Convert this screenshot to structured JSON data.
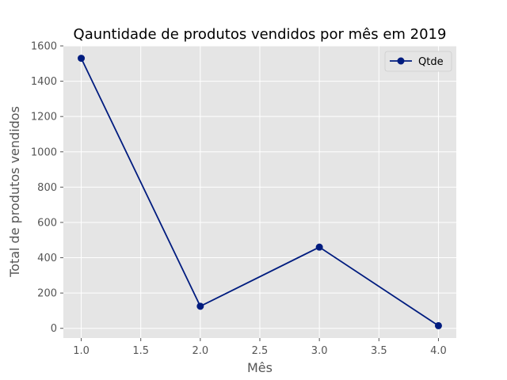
{
  "chart_data": {
    "type": "line",
    "title": "Qauntidade de produtos vendidos por mês em 2019",
    "xlabel": "Mês",
    "ylabel": "Total de produtos vendidos",
    "xlim": [
      0.85,
      4.15
    ],
    "ylim": [
      -55,
      1600
    ],
    "xticks": [
      "1.0",
      "1.5",
      "2.0",
      "2.5",
      "3.0",
      "3.5",
      "4.0"
    ],
    "yticks": [
      "0",
      "200",
      "400",
      "600",
      "800",
      "1000",
      "1200",
      "1400",
      "1600"
    ],
    "grid": true,
    "legend_position": "top-right",
    "series": [
      {
        "name": "Qtde",
        "color": "#001c7f",
        "marker": "circle",
        "x": [
          1,
          2,
          3,
          4
        ],
        "values": [
          1530,
          125,
          460,
          15
        ]
      }
    ]
  }
}
